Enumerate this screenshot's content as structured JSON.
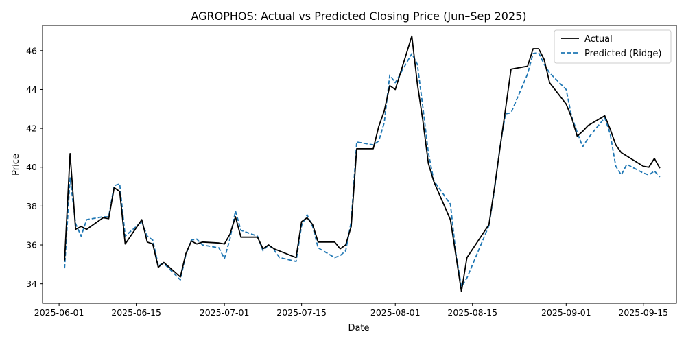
{
  "chart_data": {
    "type": "line",
    "title": "AGROPHOS: Actual vs Predicted Closing Price (Jun–Sep 2025)",
    "xlabel": "Date",
    "ylabel": "Price",
    "x_tick_labels": [
      "2025-06-01",
      "2025-06-15",
      "2025-07-01",
      "2025-07-15",
      "2025-08-01",
      "2025-08-15",
      "2025-09-01",
      "2025-09-15"
    ],
    "x_tick_dates": [
      "2025-06-01",
      "2025-06-15",
      "2025-07-01",
      "2025-07-15",
      "2025-08-01",
      "2025-08-15",
      "2025-09-01",
      "2025-09-15"
    ],
    "y_tick_labels": [
      "34",
      "36",
      "38",
      "40",
      "42",
      "44",
      "46"
    ],
    "xlim": [
      "2025-05-29",
      "2025-09-21"
    ],
    "ylim": [
      33.0,
      47.3
    ],
    "legend_position": "top-right",
    "grid": false,
    "colors": {
      "Actual": "#000000",
      "Predicted (Ridge)": "#1f77b4"
    },
    "series": [
      {
        "name": "Actual",
        "style": "solid",
        "points": [
          [
            "2025-06-02",
            35.2
          ],
          [
            "2025-06-03",
            40.7
          ],
          [
            "2025-06-04",
            36.8
          ],
          [
            "2025-06-05",
            36.95
          ],
          [
            "2025-06-06",
            36.8
          ],
          [
            "2025-06-09",
            37.4
          ],
          [
            "2025-06-10",
            37.35
          ],
          [
            "2025-06-11",
            38.95
          ],
          [
            "2025-06-12",
            38.75
          ],
          [
            "2025-06-13",
            36.05
          ],
          [
            "2025-06-16",
            37.3
          ],
          [
            "2025-06-17",
            36.15
          ],
          [
            "2025-06-18",
            36.05
          ],
          [
            "2025-06-19",
            34.85
          ],
          [
            "2025-06-20",
            35.1
          ],
          [
            "2025-06-23",
            34.35
          ],
          [
            "2025-06-24",
            35.55
          ],
          [
            "2025-06-25",
            36.2
          ],
          [
            "2025-06-26",
            36.05
          ],
          [
            "2025-06-27",
            36.15
          ],
          [
            "2025-06-30",
            36.1
          ],
          [
            "2025-07-01",
            36.05
          ],
          [
            "2025-07-02",
            36.55
          ],
          [
            "2025-07-03",
            37.45
          ],
          [
            "2025-07-04",
            36.4
          ],
          [
            "2025-07-07",
            36.4
          ],
          [
            "2025-07-08",
            35.8
          ],
          [
            "2025-07-09",
            36.0
          ],
          [
            "2025-07-10",
            35.8
          ],
          [
            "2025-07-14",
            35.35
          ],
          [
            "2025-07-15",
            37.2
          ],
          [
            "2025-07-16",
            37.4
          ],
          [
            "2025-07-17",
            37.05
          ],
          [
            "2025-07-18",
            36.15
          ],
          [
            "2025-07-21",
            36.15
          ],
          [
            "2025-07-22",
            35.8
          ],
          [
            "2025-07-23",
            36.0
          ],
          [
            "2025-07-24",
            36.95
          ],
          [
            "2025-07-25",
            40.95
          ],
          [
            "2025-07-28",
            40.95
          ],
          [
            "2025-07-29",
            42.1
          ],
          [
            "2025-07-30",
            42.9
          ],
          [
            "2025-07-31",
            44.2
          ],
          [
            "2025-08-01",
            44.0
          ],
          [
            "2025-08-04",
            46.75
          ],
          [
            "2025-08-05",
            44.3
          ],
          [
            "2025-08-06",
            42.4
          ],
          [
            "2025-08-07",
            40.2
          ],
          [
            "2025-08-08",
            39.25
          ],
          [
            "2025-08-11",
            37.3
          ],
          [
            "2025-08-12",
            35.45
          ],
          [
            "2025-08-13",
            33.6
          ],
          [
            "2025-08-14",
            35.35
          ],
          [
            "2025-08-18",
            37.05
          ],
          [
            "2025-08-19",
            38.95
          ],
          [
            "2025-08-20",
            41.0
          ],
          [
            "2025-08-21",
            43.0
          ],
          [
            "2025-08-22",
            45.05
          ],
          [
            "2025-08-25",
            45.2
          ],
          [
            "2025-08-26",
            46.1
          ],
          [
            "2025-08-27",
            46.1
          ],
          [
            "2025-08-28",
            45.55
          ],
          [
            "2025-08-29",
            44.35
          ],
          [
            "2025-09-01",
            43.25
          ],
          [
            "2025-09-02",
            42.55
          ],
          [
            "2025-09-03",
            41.6
          ],
          [
            "2025-09-04",
            41.85
          ],
          [
            "2025-09-05",
            42.15
          ],
          [
            "2025-09-08",
            42.65
          ],
          [
            "2025-09-09",
            41.95
          ],
          [
            "2025-09-10",
            41.15
          ],
          [
            "2025-09-11",
            40.75
          ],
          [
            "2025-09-15",
            40.05
          ],
          [
            "2025-09-16",
            40.0
          ],
          [
            "2025-09-17",
            40.45
          ],
          [
            "2025-09-18",
            39.95
          ]
        ]
      },
      {
        "name": "Predicted (Ridge)",
        "style": "dashed",
        "points": [
          [
            "2025-06-02",
            34.8
          ],
          [
            "2025-06-03",
            39.45
          ],
          [
            "2025-06-04",
            37.1
          ],
          [
            "2025-06-05",
            36.45
          ],
          [
            "2025-06-06",
            37.3
          ],
          [
            "2025-06-09",
            37.45
          ],
          [
            "2025-06-10",
            37.45
          ],
          [
            "2025-06-11",
            39.05
          ],
          [
            "2025-06-12",
            39.15
          ],
          [
            "2025-06-13",
            36.45
          ],
          [
            "2025-06-16",
            37.2
          ],
          [
            "2025-06-17",
            36.45
          ],
          [
            "2025-06-18",
            36.25
          ],
          [
            "2025-06-19",
            34.95
          ],
          [
            "2025-06-20",
            35.05
          ],
          [
            "2025-06-23",
            34.2
          ],
          [
            "2025-06-24",
            35.5
          ],
          [
            "2025-06-25",
            36.25
          ],
          [
            "2025-06-26",
            36.3
          ],
          [
            "2025-06-27",
            36.0
          ],
          [
            "2025-06-30",
            35.85
          ],
          [
            "2025-07-01",
            35.3
          ],
          [
            "2025-07-02",
            36.3
          ],
          [
            "2025-07-03",
            37.75
          ],
          [
            "2025-07-04",
            36.75
          ],
          [
            "2025-07-07",
            36.45
          ],
          [
            "2025-07-08",
            35.7
          ],
          [
            "2025-07-09",
            36.0
          ],
          [
            "2025-07-10",
            35.75
          ],
          [
            "2025-07-11",
            35.35
          ],
          [
            "2025-07-14",
            35.15
          ],
          [
            "2025-07-15",
            37.0
          ],
          [
            "2025-07-16",
            37.55
          ],
          [
            "2025-07-17",
            36.95
          ],
          [
            "2025-07-18",
            35.85
          ],
          [
            "2025-07-21",
            35.35
          ],
          [
            "2025-07-22",
            35.45
          ],
          [
            "2025-07-23",
            35.7
          ],
          [
            "2025-07-24",
            37.2
          ],
          [
            "2025-07-25",
            41.3
          ],
          [
            "2025-07-28",
            41.15
          ],
          [
            "2025-07-29",
            41.35
          ],
          [
            "2025-07-30",
            42.3
          ],
          [
            "2025-07-31",
            44.75
          ],
          [
            "2025-08-01",
            44.35
          ],
          [
            "2025-08-04",
            45.85
          ],
          [
            "2025-08-05",
            45.3
          ],
          [
            "2025-08-06",
            43.1
          ],
          [
            "2025-08-07",
            40.75
          ],
          [
            "2025-08-08",
            39.3
          ],
          [
            "2025-08-11",
            38.1
          ],
          [
            "2025-08-12",
            35.55
          ],
          [
            "2025-08-13",
            33.85
          ],
          [
            "2025-08-14",
            34.3
          ],
          [
            "2025-08-18",
            37.0
          ],
          [
            "2025-08-19",
            38.85
          ],
          [
            "2025-08-20",
            41.05
          ],
          [
            "2025-08-21",
            42.75
          ],
          [
            "2025-08-22",
            42.8
          ],
          [
            "2025-08-25",
            44.8
          ],
          [
            "2025-08-26",
            45.85
          ],
          [
            "2025-08-27",
            45.9
          ],
          [
            "2025-08-28",
            45.3
          ],
          [
            "2025-08-29",
            44.85
          ],
          [
            "2025-09-01",
            44.0
          ],
          [
            "2025-09-02",
            42.6
          ],
          [
            "2025-09-03",
            41.8
          ],
          [
            "2025-09-04",
            41.05
          ],
          [
            "2025-09-05",
            41.5
          ],
          [
            "2025-09-08",
            42.55
          ],
          [
            "2025-09-09",
            41.7
          ],
          [
            "2025-09-10",
            40.05
          ],
          [
            "2025-09-11",
            39.6
          ],
          [
            "2025-09-12",
            40.15
          ],
          [
            "2025-09-15",
            39.7
          ],
          [
            "2025-09-16",
            39.6
          ],
          [
            "2025-09-17",
            39.8
          ],
          [
            "2025-09-18",
            39.5
          ]
        ]
      }
    ]
  }
}
